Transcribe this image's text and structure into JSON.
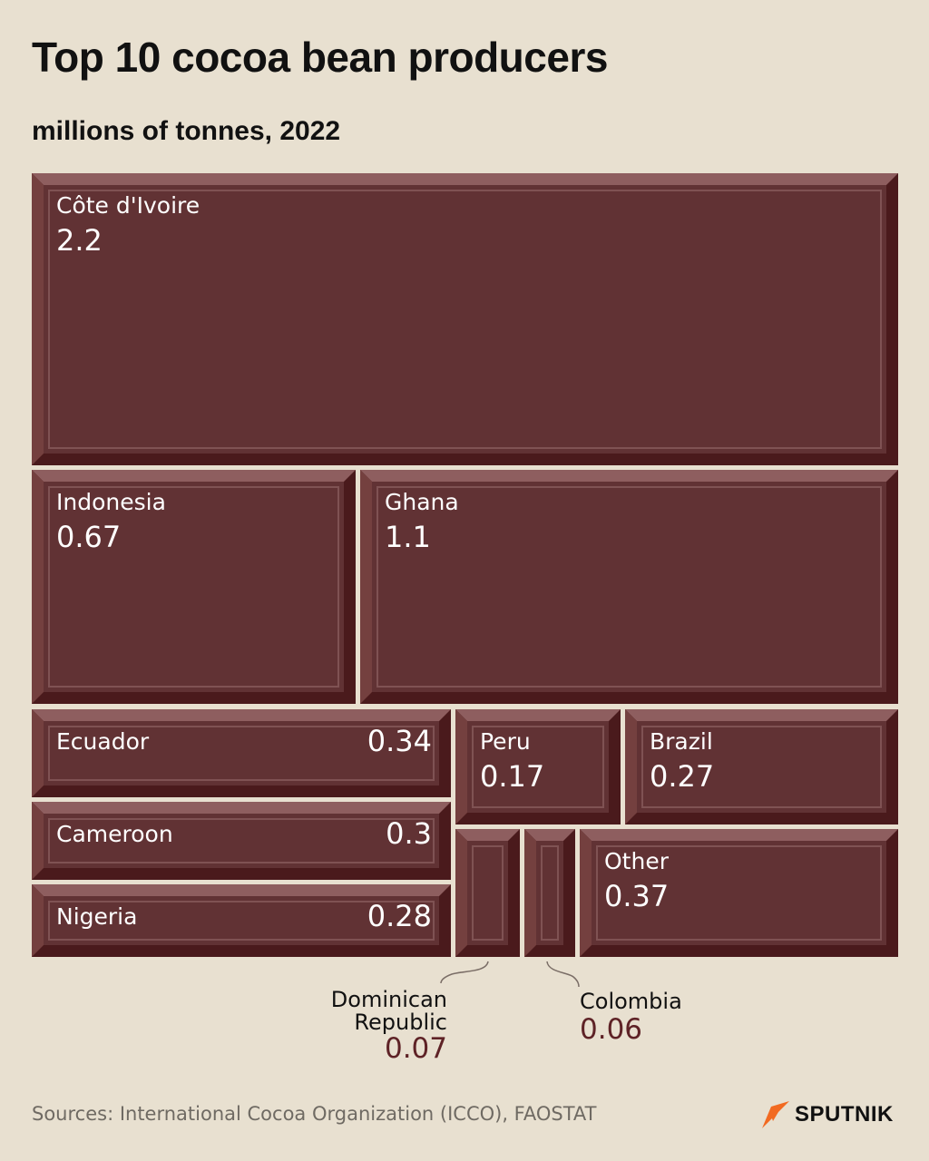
{
  "title": "Top 10 cocoa bean producers",
  "subtitle": "millions of tonnes, 2022",
  "source": "Sources: International Cocoa Organization (ICCO), FAOSTAT",
  "logo": {
    "text": "SPUTNIK",
    "icon": "sputnik-arrow-icon",
    "color": "#f26a21"
  },
  "colors": {
    "background": "#e8e0d0",
    "tile_face": "#613234",
    "tile_light": "#8e5e5f",
    "tile_dark": "#4a1a1c",
    "tile_inner_line": "#7f5253",
    "label": "#ffffff",
    "outside_value": "#5e2226",
    "leader_line": "#7a6d66"
  },
  "chart_data": {
    "type": "treemap",
    "title": "Top 10 cocoa bean producers",
    "subtitle": "millions of tonnes, 2022",
    "unit": "millions of tonnes",
    "items": [
      {
        "name": "Côte d'Ivoire",
        "value": 2.2,
        "value_label": "2.2"
      },
      {
        "name": "Indonesia",
        "value": 0.67,
        "value_label": "0.67"
      },
      {
        "name": "Ghana",
        "value": 1.1,
        "value_label": "1.1"
      },
      {
        "name": "Ecuador",
        "value": 0.34,
        "value_label": "0.34"
      },
      {
        "name": "Peru",
        "value": 0.17,
        "value_label": "0.17"
      },
      {
        "name": "Brazil",
        "value": 0.27,
        "value_label": "0.27"
      },
      {
        "name": "Cameroon",
        "value": 0.3,
        "value_label": "0.3"
      },
      {
        "name": "Nigeria",
        "value": 0.28,
        "value_label": "0.28"
      },
      {
        "name": "Dominican Republic",
        "name_lines": [
          "Dominican",
          "Republic"
        ],
        "value": 0.07,
        "value_label": "0.07"
      },
      {
        "name": "Colombia",
        "value": 0.06,
        "value_label": "0.06"
      },
      {
        "name": "Other",
        "value": 0.37,
        "value_label": "0.37"
      }
    ]
  }
}
